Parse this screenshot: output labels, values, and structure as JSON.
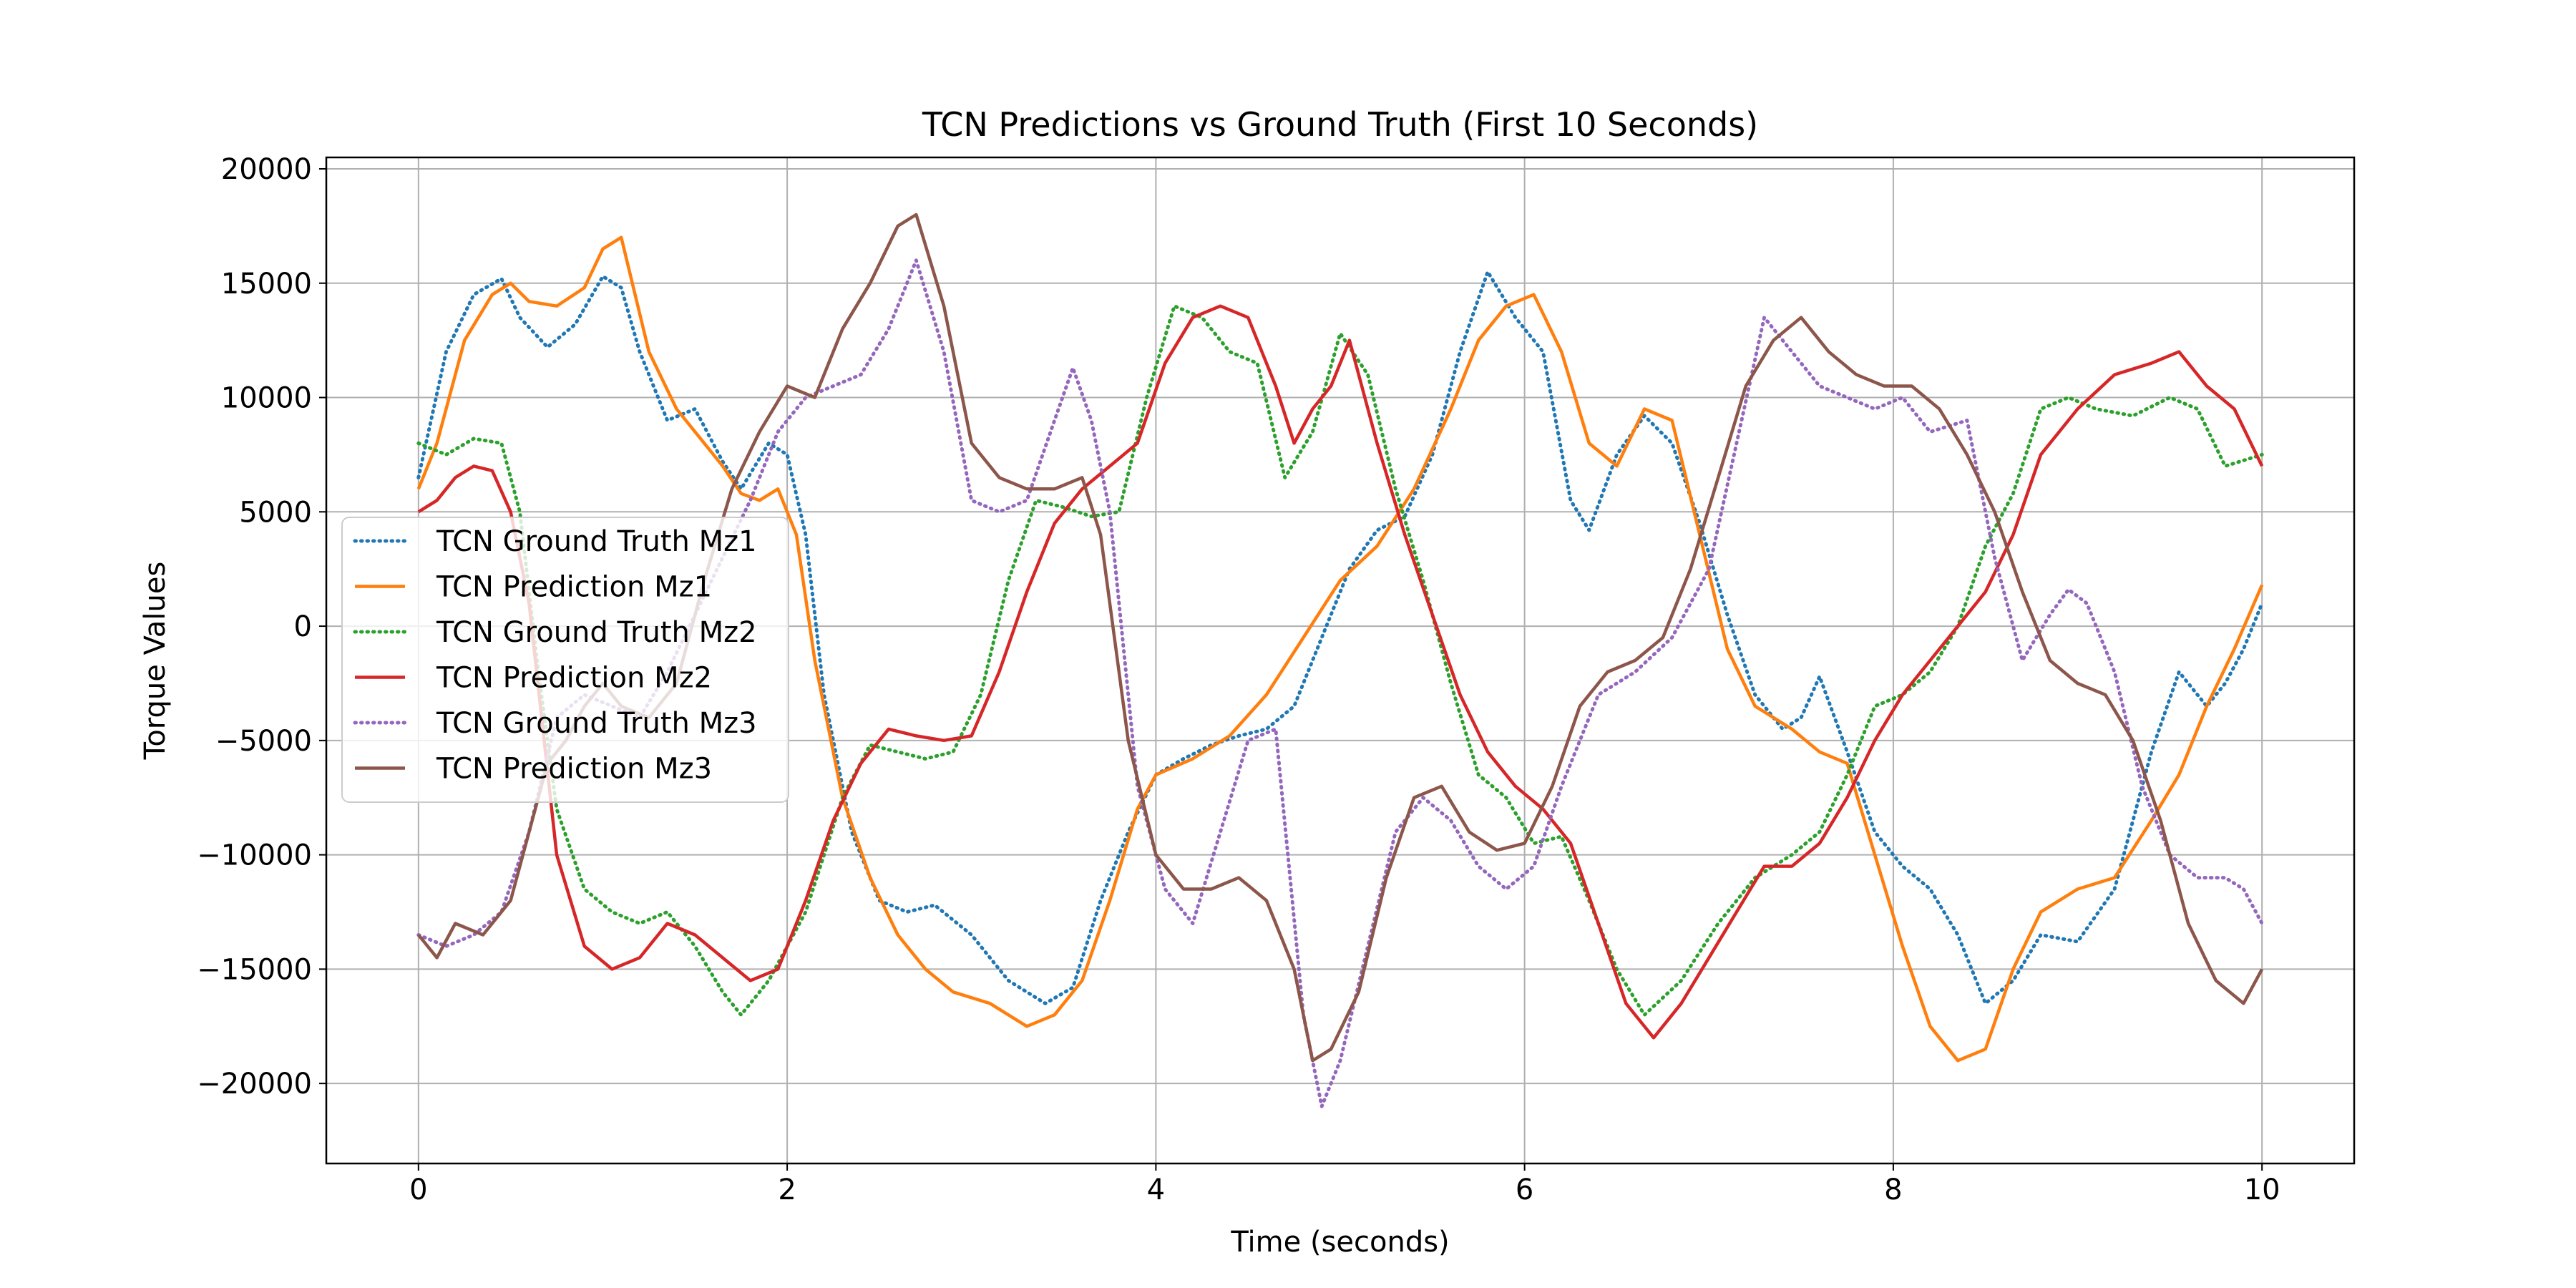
{
  "chart_data": {
    "type": "line",
    "title": "TCN Predictions vs Ground Truth (First 10 Seconds)",
    "xlabel": "Time (seconds)",
    "ylabel": "Torque Values",
    "xlim": [
      -0.5,
      10.5
    ],
    "ylim": [
      -23500,
      20500
    ],
    "xticks": [
      0,
      2,
      4,
      6,
      8,
      10
    ],
    "xtick_labels": [
      "0",
      "2",
      "4",
      "6",
      "8",
      "10"
    ],
    "yticks": [
      -20000,
      -15000,
      -10000,
      -5000,
      0,
      5000,
      10000,
      15000,
      20000
    ],
    "ytick_labels": [
      "−20000",
      "−15000",
      "−10000",
      "−5000",
      "0",
      "5000",
      "10000",
      "15000",
      "20000"
    ],
    "grid": true,
    "legend_position": "center-left",
    "series": [
      {
        "name": "TCN Ground Truth Mz1",
        "color": "#1f77b4",
        "style": "dotted",
        "x": [
          0,
          0.15,
          0.3,
          0.45,
          0.55,
          0.7,
          0.85,
          1.0,
          1.1,
          1.2,
          1.35,
          1.5,
          1.65,
          1.75,
          1.9,
          2.0,
          2.1,
          2.2,
          2.35,
          2.5,
          2.65,
          2.8,
          3.0,
          3.2,
          3.4,
          3.55,
          3.7,
          3.85,
          4.0,
          4.15,
          4.3,
          4.45,
          4.6,
          4.75,
          4.9,
          5.05,
          5.2,
          5.35,
          5.5,
          5.65,
          5.8,
          5.95,
          6.1,
          6.25,
          6.35,
          6.5,
          6.65,
          6.8,
          6.95,
          7.1,
          7.25,
          7.4,
          7.5,
          7.6,
          7.75,
          7.9,
          8.05,
          8.2,
          8.35,
          8.5,
          8.65,
          8.8,
          9.0,
          9.2,
          9.4,
          9.55,
          9.7,
          9.8,
          9.9,
          10.0
        ],
        "y": [
          6500,
          12000,
          14500,
          15200,
          13500,
          12200,
          13200,
          15300,
          14800,
          12000,
          9000,
          9500,
          7200,
          6000,
          8000,
          7500,
          4000,
          -3000,
          -9000,
          -12000,
          -12500,
          -12200,
          -13500,
          -15500,
          -16500,
          -15800,
          -12000,
          -9000,
          -6500,
          -5800,
          -5200,
          -4800,
          -4500,
          -3500,
          -500,
          2500,
          4200,
          4800,
          7500,
          12000,
          15500,
          13500,
          12000,
          5500,
          4200,
          7500,
          9200,
          8000,
          4500,
          500,
          -3000,
          -4500,
          -4000,
          -2200,
          -5500,
          -9000,
          -10500,
          -11500,
          -13500,
          -16500,
          -15500,
          -13500,
          -13800,
          -11500,
          -5500,
          -2000,
          -3500,
          -2500,
          -1000,
          1000
        ]
      },
      {
        "name": "TCN Prediction Mz1",
        "color": "#ff7f0e",
        "style": "solid",
        "x": [
          0,
          0.1,
          0.25,
          0.4,
          0.5,
          0.6,
          0.75,
          0.9,
          1.0,
          1.1,
          1.25,
          1.4,
          1.55,
          1.65,
          1.75,
          1.85,
          1.95,
          2.05,
          2.15,
          2.3,
          2.45,
          2.6,
          2.75,
          2.9,
          3.1,
          3.3,
          3.45,
          3.6,
          3.75,
          3.9,
          4.0,
          4.2,
          4.4,
          4.6,
          4.8,
          5.0,
          5.2,
          5.4,
          5.6,
          5.75,
          5.9,
          6.05,
          6.2,
          6.35,
          6.5,
          6.65,
          6.8,
          6.95,
          7.1,
          7.25,
          7.45,
          7.6,
          7.75,
          7.9,
          8.05,
          8.2,
          8.35,
          8.5,
          8.65,
          8.8,
          9.0,
          9.2,
          9.4,
          9.55,
          9.7,
          9.85,
          10.0
        ],
        "y": [
          6000,
          8000,
          12500,
          14500,
          15000,
          14200,
          14000,
          14800,
          16500,
          17000,
          12000,
          9500,
          8000,
          7000,
          5800,
          5500,
          6000,
          4000,
          -1500,
          -7500,
          -11000,
          -13500,
          -15000,
          -16000,
          -16500,
          -17500,
          -17000,
          -15500,
          -12000,
          -8000,
          -6500,
          -5800,
          -4800,
          -3000,
          -500,
          2000,
          3500,
          6000,
          9500,
          12500,
          14000,
          14500,
          12000,
          8000,
          7000,
          9500,
          9000,
          4000,
          -1000,
          -3500,
          -4500,
          -5500,
          -6000,
          -10000,
          -14000,
          -17500,
          -19000,
          -18500,
          -15000,
          -12500,
          -11500,
          -11000,
          -8500,
          -6500,
          -3500,
          -1000,
          1800
        ]
      },
      {
        "name": "TCN Ground Truth Mz2",
        "color": "#2ca02c",
        "style": "dotted",
        "x": [
          0,
          0.15,
          0.3,
          0.45,
          0.55,
          0.65,
          0.75,
          0.9,
          1.05,
          1.2,
          1.35,
          1.5,
          1.65,
          1.75,
          1.9,
          2.1,
          2.3,
          2.45,
          2.6,
          2.75,
          2.9,
          3.05,
          3.2,
          3.35,
          3.5,
          3.65,
          3.8,
          3.95,
          4.1,
          4.25,
          4.4,
          4.55,
          4.7,
          4.85,
          5.0,
          5.15,
          5.3,
          5.45,
          5.6,
          5.75,
          5.9,
          6.05,
          6.2,
          6.35,
          6.5,
          6.65,
          6.85,
          7.05,
          7.25,
          7.45,
          7.6,
          7.75,
          7.9,
          8.05,
          8.2,
          8.35,
          8.5,
          8.65,
          8.8,
          8.95,
          9.1,
          9.3,
          9.5,
          9.65,
          9.8,
          10.0
        ],
        "y": [
          8000,
          7500,
          8200,
          8000,
          5000,
          -2000,
          -8000,
          -11500,
          -12500,
          -13000,
          -12500,
          -14000,
          -16000,
          -17000,
          -15500,
          -12500,
          -7500,
          -5200,
          -5500,
          -5800,
          -5500,
          -3000,
          2000,
          5500,
          5200,
          4800,
          5000,
          10000,
          14000,
          13500,
          12000,
          11500,
          6500,
          8500,
          12800,
          11000,
          6000,
          2000,
          -2500,
          -6500,
          -7500,
          -9500,
          -9200,
          -12000,
          -15000,
          -17000,
          -15500,
          -13000,
          -11000,
          -10000,
          -9000,
          -6500,
          -3500,
          -3000,
          -2000,
          0,
          3500,
          5800,
          9500,
          10000,
          9500,
          9200,
          10000,
          9500,
          7000,
          7500
        ]
      },
      {
        "name": "TCN Prediction Mz2",
        "color": "#d62728",
        "style": "solid",
        "x": [
          0,
          0.1,
          0.2,
          0.3,
          0.4,
          0.5,
          0.6,
          0.75,
          0.9,
          1.05,
          1.2,
          1.35,
          1.5,
          1.65,
          1.8,
          1.95,
          2.1,
          2.25,
          2.4,
          2.55,
          2.7,
          2.85,
          3.0,
          3.15,
          3.3,
          3.45,
          3.6,
          3.75,
          3.9,
          4.05,
          4.2,
          4.35,
          4.5,
          4.65,
          4.75,
          4.85,
          4.95,
          5.05,
          5.2,
          5.35,
          5.5,
          5.65,
          5.8,
          5.95,
          6.1,
          6.25,
          6.4,
          6.55,
          6.7,
          6.85,
          7.0,
          7.15,
          7.3,
          7.45,
          7.6,
          7.75,
          7.9,
          8.05,
          8.2,
          8.35,
          8.5,
          8.65,
          8.8,
          9.0,
          9.2,
          9.4,
          9.55,
          9.7,
          9.85,
          10.0
        ],
        "y": [
          5000,
          5500,
          6500,
          7000,
          6800,
          5000,
          1000,
          -10000,
          -14000,
          -15000,
          -14500,
          -13000,
          -13500,
          -14500,
          -15500,
          -15000,
          -12000,
          -8500,
          -6000,
          -4500,
          -4800,
          -5000,
          -4800,
          -2000,
          1500,
          4500,
          6000,
          7000,
          8000,
          11500,
          13500,
          14000,
          13500,
          10500,
          8000,
          9500,
          10500,
          12500,
          8000,
          4000,
          500,
          -3000,
          -5500,
          -7000,
          -8000,
          -9500,
          -13000,
          -16500,
          -18000,
          -16500,
          -14500,
          -12500,
          -10500,
          -10500,
          -9500,
          -7500,
          -5000,
          -3000,
          -1500,
          0,
          1500,
          4000,
          7500,
          9500,
          11000,
          11500,
          12000,
          10500,
          9500,
          7000
        ]
      },
      {
        "name": "TCN Ground Truth Mz3",
        "color": "#9467bd",
        "style": "dotted",
        "x": [
          0,
          0.15,
          0.3,
          0.45,
          0.6,
          0.75,
          0.9,
          1.05,
          1.2,
          1.35,
          1.5,
          1.65,
          1.8,
          1.95,
          2.1,
          2.25,
          2.4,
          2.55,
          2.7,
          2.85,
          3.0,
          3.15,
          3.3,
          3.45,
          3.55,
          3.65,
          3.75,
          3.9,
          4.05,
          4.2,
          4.35,
          4.5,
          4.65,
          4.8,
          4.9,
          5.0,
          5.15,
          5.3,
          5.45,
          5.6,
          5.75,
          5.9,
          6.05,
          6.2,
          6.4,
          6.6,
          6.8,
          7.0,
          7.15,
          7.3,
          7.45,
          7.6,
          7.75,
          7.9,
          8.05,
          8.2,
          8.4,
          8.55,
          8.7,
          8.85,
          8.95,
          9.05,
          9.2,
          9.35,
          9.5,
          9.65,
          9.8,
          9.9,
          10.0
        ],
        "y": [
          -13500,
          -14000,
          -13500,
          -12500,
          -9000,
          -4000,
          -3000,
          -3500,
          -4000,
          -2000,
          500,
          3000,
          5500,
          8500,
          10000,
          10500,
          11000,
          13000,
          16000,
          12000,
          5500,
          5000,
          5500,
          9000,
          11300,
          9000,
          5000,
          -7000,
          -11500,
          -13000,
          -9000,
          -5000,
          -4500,
          -17000,
          -21000,
          -19000,
          -14000,
          -9000,
          -7500,
          -8500,
          -10500,
          -11500,
          -10500,
          -7000,
          -3000,
          -2000,
          -500,
          2500,
          8000,
          13500,
          12000,
          10500,
          10000,
          9500,
          10000,
          8500,
          9000,
          3000,
          -1500,
          500,
          1600,
          1000,
          -2000,
          -7000,
          -10000,
          -11000,
          -11000,
          -11500,
          -13000
        ]
      },
      {
        "name": "TCN Prediction Mz3",
        "color": "#8c564b",
        "style": "solid",
        "x": [
          0,
          0.1,
          0.2,
          0.35,
          0.5,
          0.6,
          0.7,
          0.8,
          0.9,
          1.0,
          1.1,
          1.25,
          1.4,
          1.55,
          1.7,
          1.85,
          2.0,
          2.15,
          2.3,
          2.45,
          2.6,
          2.7,
          2.85,
          3.0,
          3.15,
          3.3,
          3.45,
          3.6,
          3.7,
          3.85,
          4.0,
          4.15,
          4.3,
          4.45,
          4.6,
          4.75,
          4.85,
          4.95,
          5.1,
          5.25,
          5.4,
          5.55,
          5.7,
          5.85,
          6.0,
          6.15,
          6.3,
          6.45,
          6.6,
          6.75,
          6.9,
          7.05,
          7.2,
          7.35,
          7.5,
          7.65,
          7.8,
          7.95,
          8.1,
          8.25,
          8.4,
          8.55,
          8.7,
          8.85,
          9.0,
          9.15,
          9.3,
          9.45,
          9.6,
          9.75,
          9.9,
          10.0
        ],
        "y": [
          -13500,
          -14500,
          -13000,
          -13500,
          -12000,
          -9000,
          -6000,
          -5000,
          -3500,
          -2500,
          -3500,
          -4000,
          -2500,
          2000,
          6000,
          8500,
          10500,
          10000,
          13000,
          15000,
          17500,
          18000,
          14000,
          8000,
          6500,
          6000,
          6000,
          6500,
          4000,
          -5000,
          -10000,
          -11500,
          -11500,
          -11000,
          -12000,
          -15000,
          -19000,
          -18500,
          -16000,
          -11000,
          -7500,
          -7000,
          -9000,
          -9800,
          -9500,
          -7000,
          -3500,
          -2000,
          -1500,
          -500,
          2500,
          6500,
          10500,
          12500,
          13500,
          12000,
          11000,
          10500,
          10500,
          9500,
          7500,
          5000,
          1500,
          -1500,
          -2500,
          -3000,
          -5000,
          -8500,
          -13000,
          -15500,
          -16500,
          -15000
        ]
      }
    ]
  }
}
